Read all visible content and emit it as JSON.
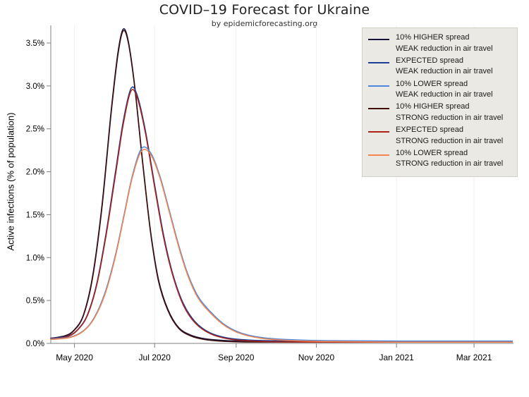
{
  "header": {
    "title": "COVID–19 Forecast for Ukraine",
    "subtitle": "by epidemicforecasting.org"
  },
  "chart_data": {
    "type": "line",
    "title": "COVID–19 Forecast for Ukraine",
    "subtitle": "by epidemicforecasting.org",
    "xlabel": "",
    "ylabel": "Active infections (% of population)",
    "ylim": [
      0,
      3.5
    ],
    "x_domain": [
      "2020-04-13",
      "2021-03-31"
    ],
    "grid": "vertical-only",
    "legend_position": "upper-right",
    "axis_color": "#808080",
    "grid_color": "#efefef",
    "tick_label_color": "#000000",
    "y_ticks": [
      {
        "value": 0.0,
        "label": "0.0%"
      },
      {
        "value": 0.5,
        "label": "0.5%"
      },
      {
        "value": 1.0,
        "label": "1.0%"
      },
      {
        "value": 1.5,
        "label": "1.5%"
      },
      {
        "value": 2.0,
        "label": "2.0%"
      },
      {
        "value": 2.5,
        "label": "2.5%"
      },
      {
        "value": 3.0,
        "label": "3.0%"
      },
      {
        "value": 3.5,
        "label": "3.5%"
      }
    ],
    "x_ticks": [
      {
        "date": "2020-05-01",
        "label": "May 2020"
      },
      {
        "date": "2020-07-01",
        "label": "Jul 2020"
      },
      {
        "date": "2020-09-01",
        "label": "Sep 2020"
      },
      {
        "date": "2020-11-01",
        "label": "Nov 2020"
      },
      {
        "date": "2021-01-01",
        "label": "Jan 2021"
      },
      {
        "date": "2021-03-01",
        "label": "Mar 2021"
      }
    ],
    "draw_order": [
      0,
      3,
      1,
      4,
      2,
      5
    ],
    "series": [
      {
        "name": "higher-spread-weak-reduction",
        "legend": [
          "10% HIGHER spread",
          "WEAK reduction in air travel"
        ],
        "color": "#14143c",
        "peak": {
          "date": "2020-06-07",
          "value_pct": 3.66
        },
        "samples": [
          [
            "2020-04-13",
            0.06
          ],
          [
            "2020-04-24",
            0.09
          ],
          [
            "2020-05-01",
            0.16
          ],
          [
            "2020-05-08",
            0.34
          ],
          [
            "2020-05-15",
            0.8
          ],
          [
            "2020-05-22",
            1.62
          ],
          [
            "2020-05-29",
            2.72
          ],
          [
            "2020-06-03",
            3.38
          ],
          [
            "2020-06-07",
            3.66
          ],
          [
            "2020-06-11",
            3.52
          ],
          [
            "2020-06-16",
            2.98
          ],
          [
            "2020-06-22",
            2.1
          ],
          [
            "2020-06-28",
            1.3
          ],
          [
            "2020-07-04",
            0.74
          ],
          [
            "2020-07-11",
            0.4
          ],
          [
            "2020-07-19",
            0.19
          ],
          [
            "2020-07-28",
            0.1
          ],
          [
            "2020-08-08",
            0.055
          ],
          [
            "2020-08-22",
            0.035
          ],
          [
            "2020-09-10",
            0.028
          ],
          [
            "2020-11-01",
            0.026
          ],
          [
            "2021-01-01",
            0.026
          ],
          [
            "2021-03-30",
            0.026
          ]
        ]
      },
      {
        "name": "expected-spread-weak-reduction",
        "legend": [
          "EXPECTED spread",
          "WEAK reduction in air travel"
        ],
        "color": "#1e3d96",
        "peak": {
          "date": "2020-06-13",
          "value_pct": 2.97
        },
        "samples": [
          [
            "2020-04-13",
            0.06
          ],
          [
            "2020-04-26",
            0.085
          ],
          [
            "2020-05-04",
            0.17
          ],
          [
            "2020-05-11",
            0.34
          ],
          [
            "2020-05-18",
            0.7
          ],
          [
            "2020-05-25",
            1.28
          ],
          [
            "2020-06-01",
            1.98
          ],
          [
            "2020-06-07",
            2.58
          ],
          [
            "2020-06-13",
            2.97
          ],
          [
            "2020-06-18",
            2.88
          ],
          [
            "2020-06-24",
            2.48
          ],
          [
            "2020-07-01",
            1.85
          ],
          [
            "2020-07-08",
            1.25
          ],
          [
            "2020-07-15",
            0.8
          ],
          [
            "2020-07-23",
            0.46
          ],
          [
            "2020-08-01",
            0.25
          ],
          [
            "2020-08-12",
            0.125
          ],
          [
            "2020-08-25",
            0.065
          ],
          [
            "2020-09-10",
            0.04
          ],
          [
            "2020-10-01",
            0.03
          ],
          [
            "2020-11-15",
            0.027
          ],
          [
            "2021-03-30",
            0.026
          ]
        ]
      },
      {
        "name": "lower-spread-weak-reduction",
        "legend": [
          "10% LOWER spread",
          "WEAK reduction in air travel"
        ],
        "color": "#4f86dc",
        "peak": {
          "date": "2020-06-21",
          "value_pct": 2.27
        },
        "samples": [
          [
            "2020-04-13",
            0.05
          ],
          [
            "2020-04-28",
            0.075
          ],
          [
            "2020-05-08",
            0.15
          ],
          [
            "2020-05-16",
            0.3
          ],
          [
            "2020-05-24",
            0.58
          ],
          [
            "2020-06-01",
            1.02
          ],
          [
            "2020-06-08",
            1.52
          ],
          [
            "2020-06-14",
            1.95
          ],
          [
            "2020-06-21",
            2.27
          ],
          [
            "2020-06-28",
            2.22
          ],
          [
            "2020-07-05",
            1.95
          ],
          [
            "2020-07-12",
            1.56
          ],
          [
            "2020-07-19",
            1.16
          ],
          [
            "2020-07-26",
            0.82
          ],
          [
            "2020-08-03",
            0.55
          ],
          [
            "2020-08-13",
            0.36
          ],
          [
            "2020-08-24",
            0.21
          ],
          [
            "2020-09-05",
            0.12
          ],
          [
            "2020-09-20",
            0.07
          ],
          [
            "2020-10-10",
            0.045
          ],
          [
            "2020-11-10",
            0.032
          ],
          [
            "2021-01-01",
            0.028
          ],
          [
            "2021-03-30",
            0.028
          ]
        ]
      },
      {
        "name": "higher-spread-strong-reduction",
        "legend": [
          "10% HIGHER spread",
          "STRONG reduction in air travel"
        ],
        "color": "#400d0b",
        "peak": {
          "date": "2020-06-07",
          "value_pct": 3.64
        },
        "samples": [
          [
            "2020-04-13",
            0.055
          ],
          [
            "2020-04-24",
            0.085
          ],
          [
            "2020-05-01",
            0.155
          ],
          [
            "2020-05-08",
            0.33
          ],
          [
            "2020-05-15",
            0.78
          ],
          [
            "2020-05-22",
            1.59
          ],
          [
            "2020-05-29",
            2.69
          ],
          [
            "2020-06-03",
            3.35
          ],
          [
            "2020-06-07",
            3.64
          ],
          [
            "2020-06-11",
            3.5
          ],
          [
            "2020-06-16",
            2.96
          ],
          [
            "2020-06-22",
            2.08
          ],
          [
            "2020-06-28",
            1.28
          ],
          [
            "2020-07-04",
            0.72
          ],
          [
            "2020-07-11",
            0.385
          ],
          [
            "2020-07-19",
            0.18
          ],
          [
            "2020-07-28",
            0.09
          ],
          [
            "2020-08-08",
            0.045
          ],
          [
            "2020-08-22",
            0.025
          ],
          [
            "2020-09-10",
            0.016
          ],
          [
            "2020-11-01",
            0.014
          ],
          [
            "2021-01-01",
            0.014
          ],
          [
            "2021-03-30",
            0.014
          ]
        ]
      },
      {
        "name": "expected-spread-strong-reduction",
        "legend": [
          "EXPECTED spread",
          "STRONG reduction in air travel"
        ],
        "color": "#ac2217",
        "peak": {
          "date": "2020-06-13",
          "value_pct": 2.94
        },
        "samples": [
          [
            "2020-04-13",
            0.055
          ],
          [
            "2020-04-26",
            0.08
          ],
          [
            "2020-05-04",
            0.165
          ],
          [
            "2020-05-11",
            0.33
          ],
          [
            "2020-05-18",
            0.68
          ],
          [
            "2020-05-25",
            1.25
          ],
          [
            "2020-06-01",
            1.94
          ],
          [
            "2020-06-07",
            2.54
          ],
          [
            "2020-06-13",
            2.94
          ],
          [
            "2020-06-18",
            2.85
          ],
          [
            "2020-06-24",
            2.45
          ],
          [
            "2020-07-01",
            1.82
          ],
          [
            "2020-07-08",
            1.22
          ],
          [
            "2020-07-15",
            0.78
          ],
          [
            "2020-07-23",
            0.44
          ],
          [
            "2020-08-01",
            0.235
          ],
          [
            "2020-08-12",
            0.115
          ],
          [
            "2020-08-25",
            0.055
          ],
          [
            "2020-09-10",
            0.03
          ],
          [
            "2020-10-01",
            0.02
          ],
          [
            "2020-11-15",
            0.015
          ],
          [
            "2021-03-30",
            0.014
          ]
        ]
      },
      {
        "name": "lower-spread-strong-reduction",
        "legend": [
          "10% LOWER spread",
          "STRONG reduction in air travel"
        ],
        "color": "#f5854e",
        "peak": {
          "date": "2020-06-21",
          "value_pct": 2.24
        },
        "samples": [
          [
            "2020-04-13",
            0.045
          ],
          [
            "2020-04-28",
            0.07
          ],
          [
            "2020-05-08",
            0.145
          ],
          [
            "2020-05-16",
            0.29
          ],
          [
            "2020-05-24",
            0.56
          ],
          [
            "2020-06-01",
            1.0
          ],
          [
            "2020-06-08",
            1.5
          ],
          [
            "2020-06-14",
            1.93
          ],
          [
            "2020-06-21",
            2.24
          ],
          [
            "2020-06-28",
            2.2
          ],
          [
            "2020-07-05",
            1.93
          ],
          [
            "2020-07-12",
            1.54
          ],
          [
            "2020-07-19",
            1.14
          ],
          [
            "2020-07-26",
            0.8
          ],
          [
            "2020-08-03",
            0.53
          ],
          [
            "2020-08-13",
            0.345
          ],
          [
            "2020-08-24",
            0.2
          ],
          [
            "2020-09-05",
            0.11
          ],
          [
            "2020-09-20",
            0.06
          ],
          [
            "2020-10-10",
            0.035
          ],
          [
            "2020-11-10",
            0.022
          ],
          [
            "2021-01-01",
            0.016
          ],
          [
            "2021-03-30",
            0.016
          ]
        ]
      }
    ]
  }
}
